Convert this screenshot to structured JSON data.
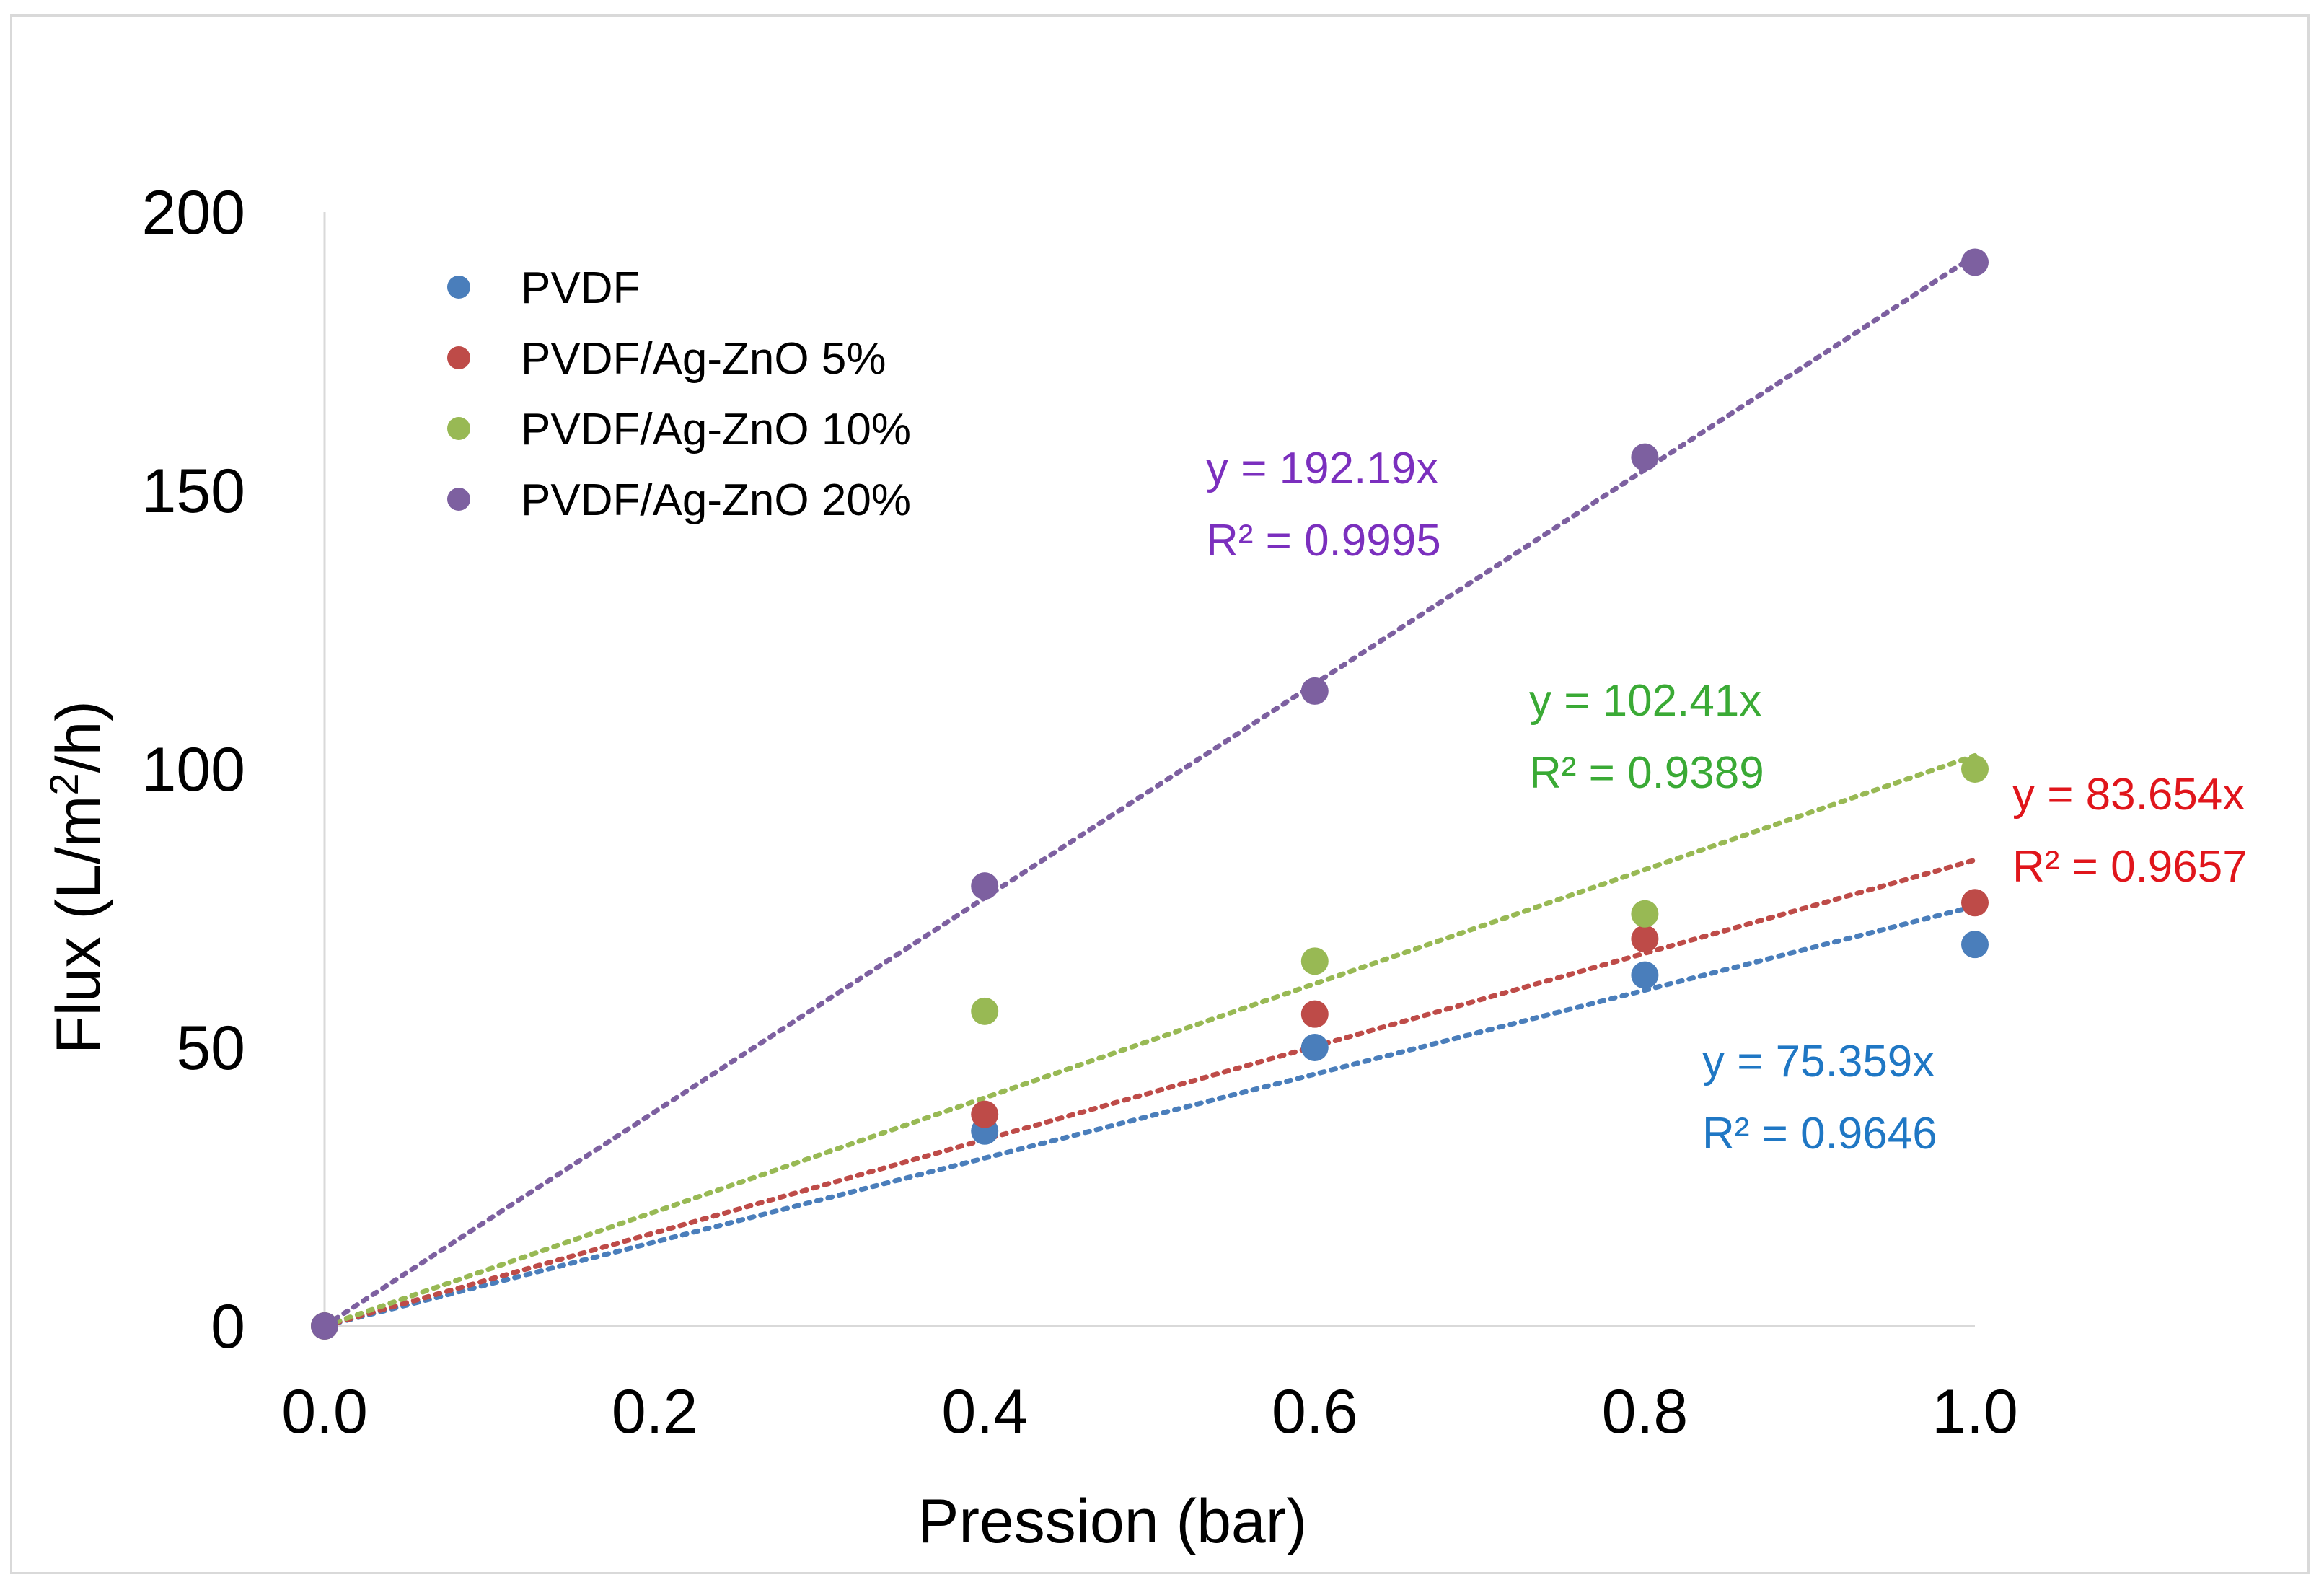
{
  "chart_data": {
    "type": "scatter",
    "title": "",
    "xlabel": "Pression (bar)",
    "ylabel_main": "Flux (L/m",
    "ylabel_sup": "2",
    "ylabel_end": "/h)",
    "xlim": [
      0,
      1
    ],
    "ylim": [
      0,
      200
    ],
    "x_ticks": [
      0,
      0.2,
      0.4,
      0.6,
      0.8,
      1.0
    ],
    "x_tick_labels": [
      "0.0",
      "0.2",
      "0.4",
      "0.6",
      "0.8",
      "1.0"
    ],
    "y_ticks": [
      0,
      50,
      100,
      150,
      200
    ],
    "y_tick_labels": [
      "0",
      "50",
      "100",
      "150",
      "200"
    ],
    "grid": false,
    "legend_position": "top-left",
    "series": [
      {
        "name": "PVDF",
        "color": "#4a7ebb",
        "eq_color": "#1f77c4",
        "x": [
          0,
          0.4,
          0.6,
          0.8,
          1.0
        ],
        "y": [
          0,
          35,
          50,
          63,
          68.5
        ],
        "trend_slope": 75.359,
        "equation": "y = 75.359x",
        "r2": "R² = 0.9646"
      },
      {
        "name": "PVDF/Ag-ZnO 5%",
        "color": "#be4b48",
        "eq_color": "#e0151b",
        "x": [
          0,
          0.4,
          0.6,
          0.8,
          1.0
        ],
        "y": [
          0,
          38,
          56,
          69.5,
          76
        ],
        "trend_slope": 83.654,
        "equation": "y = 83.654x",
        "r2": "R² = 0.9657"
      },
      {
        "name": "PVDF/Ag-ZnO 10%",
        "color": "#98b954",
        "eq_color": "#3aaa35",
        "x": [
          0,
          0.4,
          0.6,
          0.8,
          1.0
        ],
        "y": [
          0,
          56.5,
          65.5,
          74,
          100
        ],
        "trend_slope": 102.41,
        "equation": "y = 102.41x",
        "r2": "R² = 0.9389"
      },
      {
        "name": "PVDF/Ag-ZnO 20%",
        "color": "#7d60a0",
        "eq_color": "#7b2fbe",
        "x": [
          0,
          0.4,
          0.6,
          0.8,
          1.0
        ],
        "y": [
          0,
          79,
          114,
          156,
          191
        ],
        "trend_slope": 192.19,
        "equation": "y = 192.19x",
        "r2": "R² = 0.9995"
      }
    ]
  }
}
